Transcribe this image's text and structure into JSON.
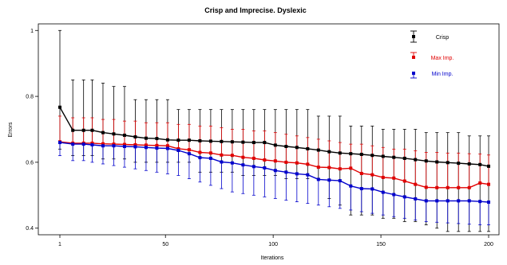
{
  "chart_data": {
    "type": "line",
    "title": "Crisp and Imprecise. Dyslexic",
    "xlabel": "Iterations",
    "ylabel": "Errors",
    "xlim": [
      1,
      200
    ],
    "ylim": [
      0.38,
      1.02
    ],
    "xticks": [
      "1",
      "50",
      "100",
      "150",
      "200"
    ],
    "yticks": [
      "0.4",
      "0.6",
      "0.8",
      "1"
    ],
    "grid": false,
    "legend_position": "top-right",
    "x": [
      1,
      7,
      12,
      16,
      21,
      26,
      31,
      36,
      41,
      46,
      51,
      56,
      61,
      66,
      71,
      76,
      81,
      86,
      91,
      96,
      101,
      106,
      111,
      116,
      121,
      126,
      131,
      136,
      141,
      146,
      151,
      156,
      161,
      166,
      171,
      176,
      181,
      186,
      191,
      196,
      200
    ],
    "series": [
      {
        "name": "Crisp",
        "color": "#000000",
        "marker": "square",
        "values": [
          0.767,
          0.697,
          0.697,
          0.697,
          0.69,
          0.686,
          0.682,
          0.677,
          0.673,
          0.672,
          0.668,
          0.667,
          0.667,
          0.665,
          0.664,
          0.663,
          0.662,
          0.661,
          0.66,
          0.66,
          0.652,
          0.648,
          0.645,
          0.641,
          0.637,
          0.632,
          0.628,
          0.626,
          0.624,
          0.621,
          0.618,
          0.615,
          0.612,
          0.608,
          0.604,
          0.601,
          0.599,
          0.597,
          0.595,
          0.593,
          0.588
        ],
        "err_low": [
          0.64,
          0.62,
          0.62,
          0.62,
          0.61,
          0.61,
          0.61,
          0.6,
          0.6,
          0.6,
          0.6,
          0.6,
          0.6,
          0.57,
          0.57,
          0.57,
          0.57,
          0.56,
          0.56,
          0.56,
          0.56,
          0.55,
          0.55,
          0.55,
          0.55,
          0.49,
          0.47,
          0.44,
          0.44,
          0.44,
          0.43,
          0.43,
          0.42,
          0.42,
          0.41,
          0.4,
          0.39,
          0.39,
          0.39,
          0.39,
          0.39
        ],
        "err_high": [
          1.0,
          0.85,
          0.85,
          0.85,
          0.84,
          0.83,
          0.83,
          0.79,
          0.79,
          0.79,
          0.79,
          0.76,
          0.76,
          0.76,
          0.76,
          0.76,
          0.76,
          0.76,
          0.76,
          0.76,
          0.76,
          0.76,
          0.76,
          0.76,
          0.74,
          0.74,
          0.74,
          0.71,
          0.71,
          0.71,
          0.7,
          0.7,
          0.7,
          0.7,
          0.69,
          0.69,
          0.69,
          0.69,
          0.68,
          0.68,
          0.68
        ]
      },
      {
        "name": "Max Imp.",
        "color": "#e00000",
        "marker": "square",
        "values": [
          0.662,
          0.658,
          0.658,
          0.658,
          0.656,
          0.655,
          0.654,
          0.653,
          0.652,
          0.651,
          0.65,
          0.641,
          0.638,
          0.63,
          0.628,
          0.622,
          0.621,
          0.615,
          0.612,
          0.607,
          0.604,
          0.6,
          0.598,
          0.594,
          0.585,
          0.584,
          0.58,
          0.582,
          0.566,
          0.562,
          0.554,
          0.552,
          0.543,
          0.533,
          0.524,
          0.523,
          0.523,
          0.523,
          0.523,
          0.537,
          0.533
        ],
        "err_high": [
          0.74,
          0.735,
          0.735,
          0.735,
          0.73,
          0.73,
          0.725,
          0.725,
          0.72,
          0.72,
          0.72,
          0.715,
          0.715,
          0.71,
          0.71,
          0.705,
          0.7,
          0.7,
          0.695,
          0.695,
          0.69,
          0.685,
          0.68,
          0.675,
          0.67,
          0.665,
          0.66,
          0.655,
          0.655,
          0.65,
          0.645,
          0.64,
          0.64,
          0.635,
          0.63,
          0.63,
          0.628,
          0.628,
          0.626,
          0.625,
          0.622
        ]
      },
      {
        "name": "Min Imp.",
        "color": "#0000cc",
        "marker": "square",
        "values": [
          0.66,
          0.655,
          0.655,
          0.653,
          0.65,
          0.65,
          0.648,
          0.647,
          0.645,
          0.643,
          0.642,
          0.636,
          0.626,
          0.614,
          0.612,
          0.601,
          0.598,
          0.592,
          0.587,
          0.583,
          0.575,
          0.57,
          0.565,
          0.562,
          0.548,
          0.546,
          0.544,
          0.528,
          0.52,
          0.519,
          0.509,
          0.502,
          0.495,
          0.489,
          0.483,
          0.483,
          0.483,
          0.483,
          0.483,
          0.481,
          0.479
        ],
        "err_low": [
          0.62,
          0.605,
          0.605,
          0.6,
          0.595,
          0.59,
          0.585,
          0.58,
          0.575,
          0.57,
          0.565,
          0.56,
          0.55,
          0.54,
          0.53,
          0.52,
          0.51,
          0.505,
          0.5,
          0.495,
          0.49,
          0.485,
          0.48,
          0.475,
          0.47,
          0.465,
          0.46,
          0.455,
          0.45,
          0.445,
          0.44,
          0.435,
          0.43,
          0.425,
          0.42,
          0.418,
          0.416,
          0.414,
          0.412,
          0.41,
          0.41
        ]
      }
    ]
  }
}
